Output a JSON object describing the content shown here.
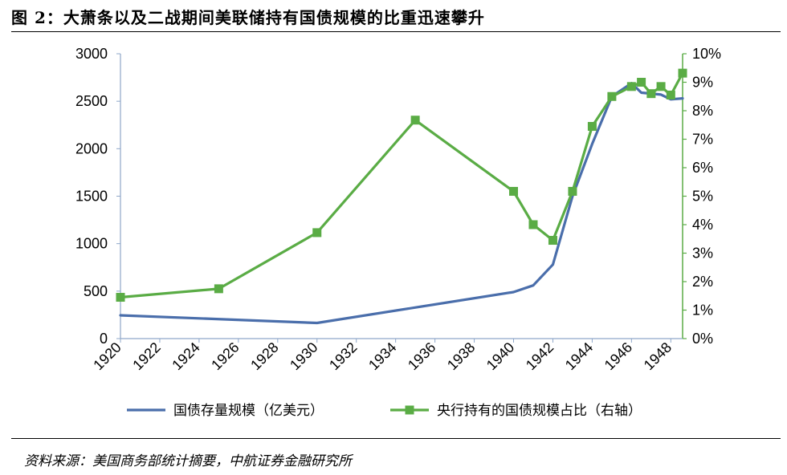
{
  "figure": {
    "title": "图 2：大萧条以及二战期间美联储持有国债规模的比重迅速攀升",
    "source": "资料来源：美国商务部统计摘要，中航证券金融研究所"
  },
  "chart_data": {
    "type": "line",
    "title": "",
    "x_ticks": [
      1920,
      1922,
      1924,
      1926,
      1928,
      1930,
      1932,
      1934,
      1936,
      1938,
      1940,
      1942,
      1944,
      1946,
      1948
    ],
    "xlim": [
      1920,
      1948.6
    ],
    "y_left": {
      "label": "",
      "lim": [
        0,
        3000
      ],
      "ticks": [
        0,
        500,
        1000,
        1500,
        2000,
        2500,
        3000
      ]
    },
    "y_right": {
      "label": "",
      "lim": [
        0,
        10
      ],
      "ticks": [
        "0%",
        "1%",
        "2%",
        "3%",
        "4%",
        "5%",
        "6%",
        "7%",
        "8%",
        "9%",
        "10%"
      ]
    },
    "legend_position": "bottom",
    "grid": false,
    "series": [
      {
        "name": "国债存量规模（亿美元）",
        "axis": "left",
        "color": "#4a6eab",
        "marker": "none",
        "points": [
          [
            1920,
            245
          ],
          [
            1930,
            165
          ],
          [
            1940,
            490
          ],
          [
            1941,
            560
          ],
          [
            1942,
            780
          ],
          [
            1943,
            1500
          ],
          [
            1944,
            2050
          ],
          [
            1945,
            2550
          ],
          [
            1946,
            2690
          ],
          [
            1946.5,
            2590
          ],
          [
            1947.5,
            2570
          ],
          [
            1948,
            2520
          ],
          [
            1948.6,
            2530
          ]
        ]
      },
      {
        "name": "央行持有的国债规模占比（右轴）",
        "axis": "right",
        "color": "#5aac45",
        "marker": "square",
        "points": [
          [
            1920,
            1.45
          ],
          [
            1925,
            1.75
          ],
          [
            1930,
            3.72
          ],
          [
            1935,
            7.67
          ],
          [
            1940,
            5.17
          ],
          [
            1941,
            4.0
          ],
          [
            1942,
            3.45
          ],
          [
            1943,
            5.17
          ],
          [
            1944,
            7.45
          ],
          [
            1945,
            8.5
          ],
          [
            1946,
            8.85
          ],
          [
            1946.5,
            9.0
          ],
          [
            1947,
            8.6
          ],
          [
            1947.5,
            8.85
          ],
          [
            1948,
            8.55
          ],
          [
            1948.6,
            9.32
          ]
        ]
      }
    ]
  }
}
